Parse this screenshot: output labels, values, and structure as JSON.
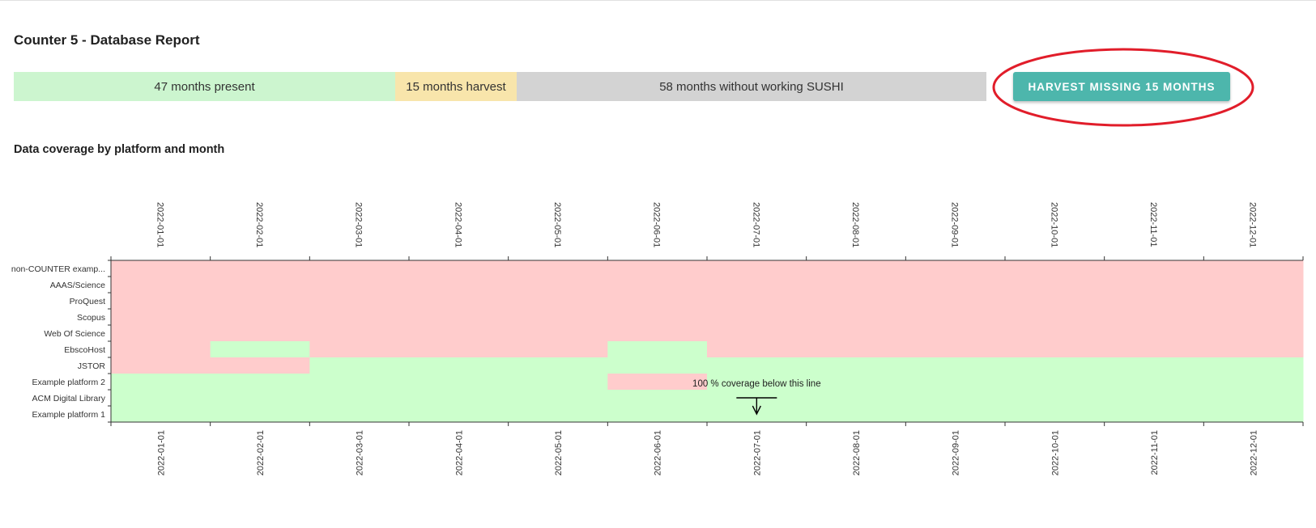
{
  "report": {
    "title": "Counter 5 - Database Report"
  },
  "status_bar": {
    "present_label": "47 months present",
    "harvest_label": "15 months harvest",
    "sushi_label": "58 months without working SUSHI",
    "present_color": "#ccf5cf",
    "harvest_color": "#f8e5ab",
    "sushi_color": "#d3d3d3"
  },
  "harvest_button": {
    "label": "HARVEST MISSING 15 MONTHS",
    "color": "#4db6ac",
    "highlight_color": "#e11d2a"
  },
  "coverage_section": {
    "title": "Data coverage by platform and month"
  },
  "chart_data": {
    "type": "heatmap",
    "x": [
      "2022-01-01",
      "2022-02-01",
      "2022-03-01",
      "2022-04-01",
      "2022-05-01",
      "2022-06-01",
      "2022-07-01",
      "2022-08-01",
      "2022-09-01",
      "2022-10-01",
      "2022-11-01",
      "2022-12-01"
    ],
    "y": [
      "non-COUNTER examp...",
      "AAAS/Science",
      "ProQuest",
      "Scopus",
      "Web Of Science",
      "EbscoHost",
      "JSTOR",
      "Example platform 2",
      "ACM Digital Library",
      "Example platform 1"
    ],
    "values": [
      [
        0,
        0,
        0,
        0,
        0,
        0,
        0,
        0,
        0,
        0,
        0,
        0
      ],
      [
        0,
        0,
        0,
        0,
        0,
        0,
        0,
        0,
        0,
        0,
        0,
        0
      ],
      [
        0,
        0,
        0,
        0,
        0,
        0,
        0,
        0,
        0,
        0,
        0,
        0
      ],
      [
        0,
        0,
        0,
        0,
        0,
        0,
        0,
        0,
        0,
        0,
        0,
        0
      ],
      [
        0,
        0,
        0,
        0,
        0,
        0,
        0,
        0,
        0,
        0,
        0,
        0
      ],
      [
        0,
        1,
        0,
        0,
        0,
        1,
        0,
        0,
        0,
        0,
        0,
        0
      ],
      [
        0,
        0,
        1,
        1,
        1,
        1,
        1,
        1,
        1,
        1,
        1,
        1
      ],
      [
        1,
        1,
        1,
        1,
        1,
        0,
        1,
        1,
        1,
        1,
        1,
        1
      ],
      [
        1,
        1,
        1,
        1,
        1,
        1,
        1,
        1,
        1,
        1,
        1,
        1
      ],
      [
        1,
        1,
        1,
        1,
        1,
        1,
        1,
        1,
        1,
        1,
        1,
        1
      ]
    ],
    "value_meaning": {
      "0": "missing",
      "1": "present"
    },
    "colors": {
      "present": "#ccffcc",
      "missing": "#ffcccc"
    },
    "annotation": {
      "text": "100 % coverage below this line",
      "row_boundary_above": "Example platform 2",
      "column": "2022-07-01"
    },
    "legend": "none",
    "grid": false
  }
}
